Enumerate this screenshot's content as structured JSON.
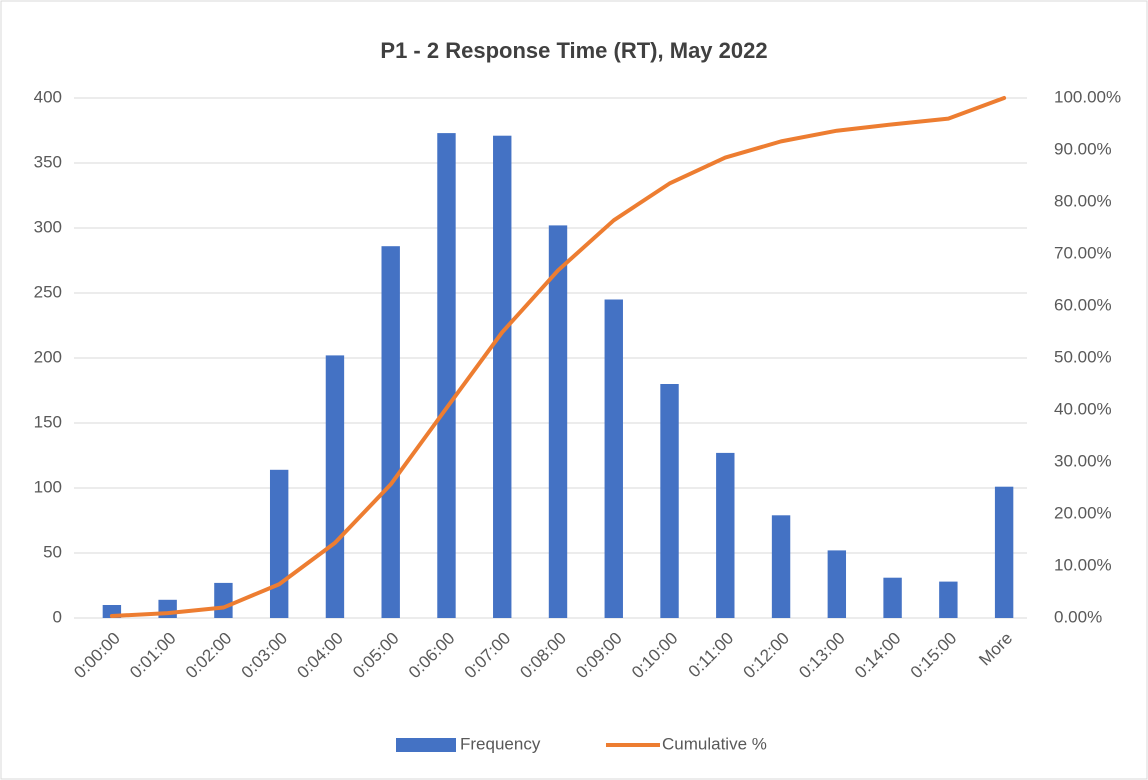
{
  "chart_data": {
    "type": "bar",
    "title": "P1 - 2 Response Time (RT), May 2022",
    "categories": [
      "0:00:00",
      "0:01:00",
      "0:02:00",
      "0:03:00",
      "0:04:00",
      "0:05:00",
      "0:06:00",
      "0:07:00",
      "0:08:00",
      "0:09:00",
      "0:10:00",
      "0:11:00",
      "0:12:00",
      "0:13:00",
      "0:14:00",
      "0:15:00",
      "More"
    ],
    "series": [
      {
        "name": "Frequency",
        "color": "#4472c4",
        "type": "bar",
        "values": [
          10,
          14,
          27,
          114,
          202,
          286,
          373,
          371,
          302,
          245,
          180,
          127,
          79,
          52,
          31,
          28,
          101
        ]
      },
      {
        "name": "Cumulative %",
        "color": "#ed7d31",
        "type": "line",
        "axis": "y2",
        "values": [
          0.39,
          0.94,
          2.01,
          6.49,
          14.44,
          25.69,
          40.36,
          54.96,
          66.84,
          76.48,
          83.56,
          88.55,
          91.66,
          93.71,
          94.93,
          96.03,
          100
        ]
      }
    ],
    "ylim": [
      0,
      400
    ],
    "yticks": [
      0,
      50,
      100,
      150,
      200,
      250,
      300,
      350,
      400
    ],
    "y2lim": [
      0,
      100
    ],
    "y2ticks": [
      {
        "value": 0,
        "label": "0.00%"
      },
      {
        "value": 10,
        "label": "10.00%"
      },
      {
        "value": 20,
        "label": "20.00%"
      },
      {
        "value": 30,
        "label": "30.00%"
      },
      {
        "value": 40,
        "label": "40.00%"
      },
      {
        "value": 50,
        "label": "50.00%"
      },
      {
        "value": 60,
        "label": "60.00%"
      },
      {
        "value": 70,
        "label": "70.00%"
      },
      {
        "value": 80,
        "label": "80.00%"
      },
      {
        "value": 90,
        "label": "90.00%"
      },
      {
        "value": 100,
        "label": "100.00%"
      }
    ],
    "grid": true,
    "legend": "bottom"
  }
}
